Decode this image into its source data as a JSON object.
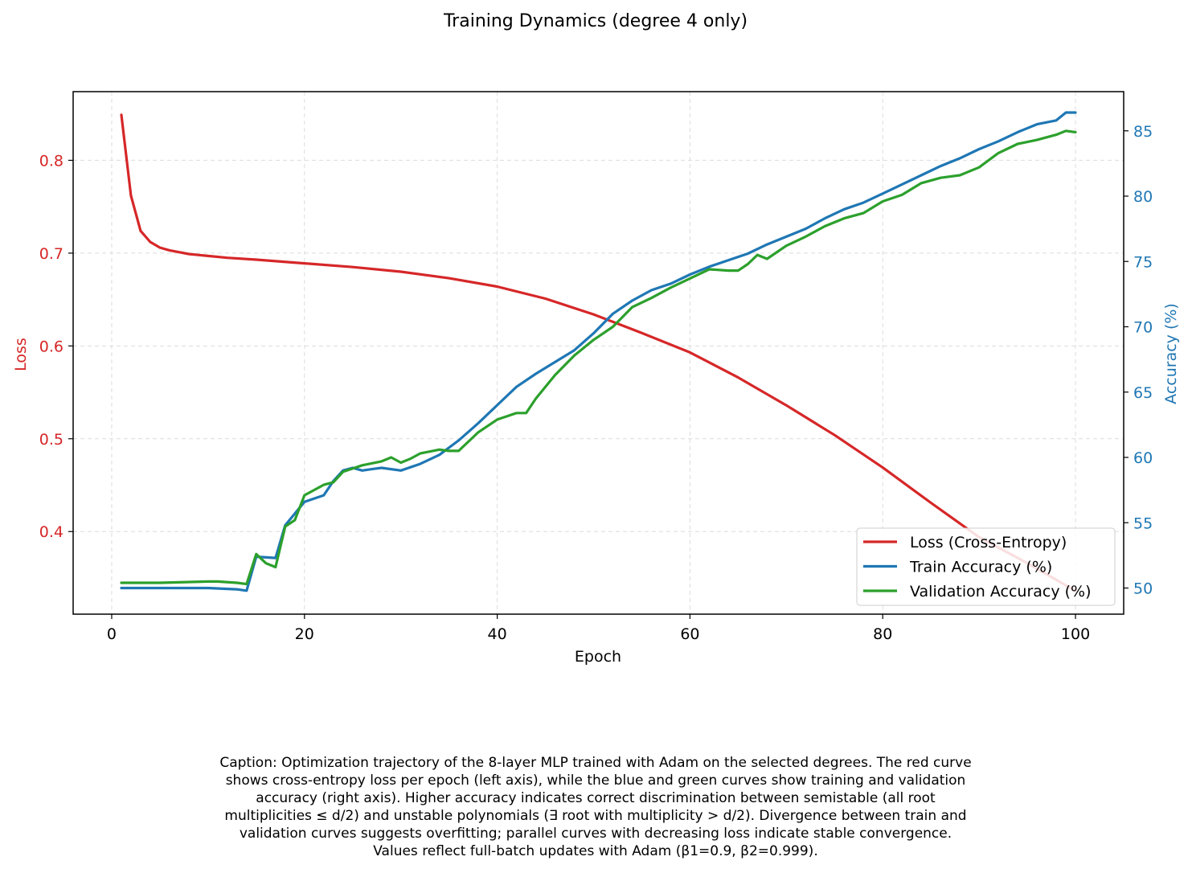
{
  "chart_data": {
    "type": "line",
    "title": "Training Dynamics (degree 4 only)",
    "xlabel": "Epoch",
    "ylabel_left": "Loss",
    "ylabel_right": "Accuracy (%)",
    "xlim": [
      -4,
      105
    ],
    "ylim_left": [
      0.311,
      0.874
    ],
    "ylim_right": [
      48.0,
      88.0
    ],
    "x_ticks": [
      0,
      20,
      40,
      60,
      80,
      100
    ],
    "y_left_ticks": [
      0.4,
      0.5,
      0.6,
      0.7,
      0.8
    ],
    "y_right_ticks": [
      50,
      55,
      60,
      65,
      70,
      75,
      80,
      85
    ],
    "grid": true,
    "legend_position": "lower-right",
    "colors": {
      "loss": "#d62728",
      "train": "#1f77b4",
      "val": "#2ca02c",
      "left_axis": "#d62728",
      "right_axis": "#1f77b4"
    },
    "series": [
      {
        "name": "Loss (Cross-Entropy)",
        "axis": "left",
        "color": "#d62728",
        "x": [
          1,
          2,
          3,
          4,
          5,
          6,
          7,
          8,
          9,
          10,
          12,
          15,
          20,
          25,
          30,
          35,
          40,
          45,
          50,
          55,
          60,
          65,
          70,
          75,
          80,
          85,
          90,
          95,
          100
        ],
        "values": [
          0.849,
          0.762,
          0.724,
          0.712,
          0.706,
          0.703,
          0.701,
          0.699,
          0.698,
          0.697,
          0.695,
          0.693,
          0.689,
          0.685,
          0.68,
          0.673,
          0.664,
          0.651,
          0.634,
          0.614,
          0.593,
          0.566,
          0.536,
          0.504,
          0.469,
          0.431,
          0.394,
          0.366,
          0.336
        ]
      },
      {
        "name": "Train Accuracy (%)",
        "axis": "right",
        "color": "#1f77b4",
        "x": [
          1,
          5,
          10,
          13,
          14,
          15,
          17,
          18,
          20,
          22,
          23,
          24,
          25,
          26,
          27,
          28,
          30,
          32,
          34,
          36,
          38,
          40,
          42,
          44,
          46,
          48,
          50,
          52,
          54,
          56,
          58,
          60,
          62,
          64,
          66,
          68,
          70,
          72,
          74,
          76,
          78,
          80,
          82,
          84,
          86,
          88,
          90,
          92,
          94,
          96,
          98,
          99,
          100
        ],
        "values": [
          50.0,
          50.0,
          50.0,
          49.9,
          49.8,
          52.4,
          52.3,
          54.8,
          56.6,
          57.1,
          58.2,
          59.0,
          59.2,
          59.0,
          59.1,
          59.2,
          59.0,
          59.5,
          60.2,
          61.3,
          62.6,
          64.0,
          65.4,
          66.4,
          67.3,
          68.2,
          69.5,
          71.0,
          72.0,
          72.8,
          73.3,
          74.0,
          74.6,
          75.1,
          75.6,
          76.3,
          76.9,
          77.5,
          78.3,
          79.0,
          79.5,
          80.2,
          80.9,
          81.6,
          82.3,
          82.9,
          83.6,
          84.2,
          84.9,
          85.5,
          85.8,
          86.4,
          86.4
        ]
      },
      {
        "name": "Validation Accuracy (%)",
        "axis": "right",
        "color": "#2ca02c",
        "x": [
          1,
          5,
          10,
          11,
          13,
          14,
          15,
          16,
          17,
          18,
          19,
          20,
          22,
          23,
          24,
          26,
          28,
          29,
          30,
          31,
          32,
          34,
          35,
          36,
          38,
          40,
          42,
          43,
          44,
          46,
          48,
          50,
          52,
          54,
          56,
          58,
          60,
          62,
          64,
          65,
          66,
          67,
          68,
          70,
          72,
          74,
          76,
          78,
          80,
          82,
          84,
          86,
          88,
          90,
          92,
          94,
          96,
          98,
          99,
          100
        ],
        "values": [
          50.4,
          50.4,
          50.5,
          50.5,
          50.4,
          50.3,
          52.6,
          51.9,
          51.6,
          54.7,
          55.2,
          57.1,
          57.9,
          58.1,
          58.9,
          59.4,
          59.7,
          60.0,
          59.6,
          59.9,
          60.3,
          60.6,
          60.5,
          60.5,
          61.9,
          62.9,
          63.4,
          63.4,
          64.5,
          66.3,
          67.8,
          69.0,
          70.0,
          71.5,
          72.2,
          73.0,
          73.7,
          74.4,
          74.3,
          74.3,
          74.8,
          75.5,
          75.2,
          76.2,
          76.9,
          77.7,
          78.3,
          78.7,
          79.6,
          80.1,
          81.0,
          81.4,
          81.6,
          82.2,
          83.3,
          84.0,
          84.3,
          84.7,
          85.0,
          84.9
        ]
      }
    ]
  },
  "caption": "Caption: Optimization trajectory of the 8-layer MLP trained with Adam on the selected degrees. The red curve\nshows cross-entropy loss per epoch (left axis), while the blue and green curves show training and validation\naccuracy (right axis). Higher accuracy indicates correct discrimination between semistable (all root\nmultiplicities ≤ d/2) and unstable polynomials (∃ root with multiplicity > d/2). Divergence between train and\nvalidation curves suggests overfitting; parallel curves with decreasing loss indicate stable convergence.\nValues reflect full-batch updates with Adam (β1=0.9, β2=0.999)."
}
